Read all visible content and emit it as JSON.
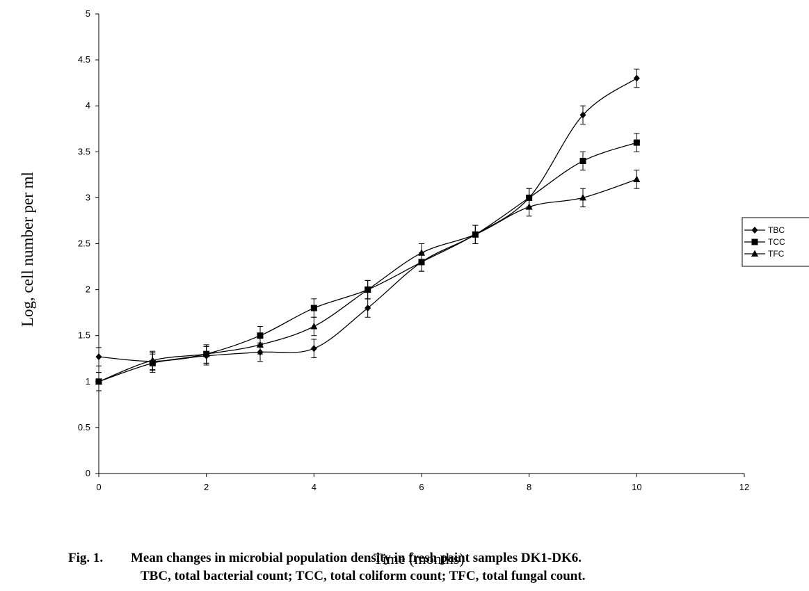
{
  "chart_data": {
    "type": "line",
    "xlabel": "Time (months)",
    "ylabel": "Log, cell number per ml",
    "xlim": [
      0,
      12
    ],
    "ylim": [
      0,
      5
    ],
    "x_ticks": [
      "0",
      "2",
      "4",
      "6",
      "8",
      "10",
      "12"
    ],
    "y_ticks": [
      "0",
      "0.5",
      "1",
      "1.5",
      "2",
      "2.5",
      "3",
      "3.5",
      "4",
      "4.5",
      "5"
    ],
    "grid": false,
    "legend_position": "right",
    "error_bar": 0.1,
    "x": [
      0,
      1,
      2,
      3,
      4,
      5,
      6,
      7,
      8,
      9,
      10
    ],
    "series": [
      {
        "name": "TBC",
        "marker": "diamond",
        "color": "#000000",
        "values": [
          1.27,
          1.22,
          1.28,
          1.32,
          1.36,
          1.8,
          2.3,
          2.6,
          3.0,
          3.9,
          4.3
        ]
      },
      {
        "name": "TCC",
        "marker": "square",
        "color": "#000000",
        "values": [
          1.0,
          1.2,
          1.3,
          1.5,
          1.8,
          2.0,
          2.3,
          2.6,
          3.0,
          3.4,
          3.6
        ]
      },
      {
        "name": "TFC",
        "marker": "triangle",
        "color": "#000000",
        "values": [
          1.0,
          1.23,
          1.3,
          1.4,
          1.6,
          2.0,
          2.4,
          2.6,
          2.9,
          3.0,
          3.2
        ]
      }
    ]
  },
  "caption": {
    "label": "Fig. 1.",
    "line1": "Mean changes in microbial population density in fresh paint samples DK1-DK6.",
    "line2": "TBC, total bacterial count; TCC, total coliform count; TFC, total fungal count."
  }
}
